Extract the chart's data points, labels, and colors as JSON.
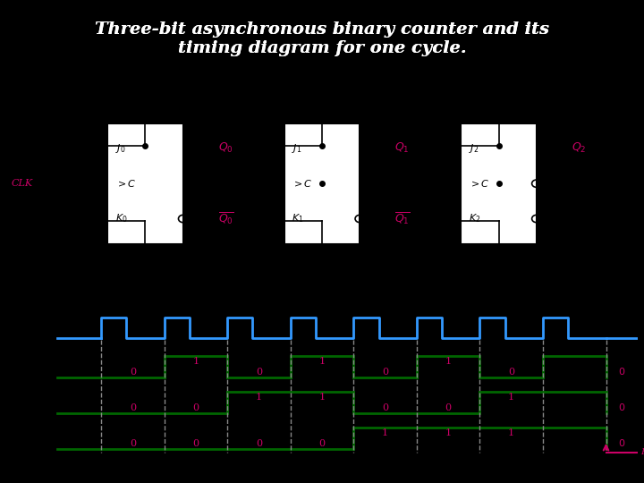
{
  "title": "Three-bit asynchronous binary counter and its\ntiming diagram for one cycle.",
  "title_color": "#ffffff",
  "bg_color": "#000000",
  "fig_bg": "#000000",
  "circuit_bg": "#d4cfc8",
  "timing_bg": "#c8cfd4",
  "clk_color": "#3399ff",
  "signal_color": "#006600",
  "label_color": "#cc0066",
  "dashed_color": "#888888",
  "text_color": "#000000",
  "magenta": "#cc0066",
  "clk_periods": 8,
  "q0_values": [
    0,
    1,
    0,
    1,
    0,
    1,
    0,
    1,
    0
  ],
  "q1_values": [
    0,
    0,
    1,
    1,
    0,
    0,
    1,
    1,
    0
  ],
  "q2_values": [
    0,
    0,
    0,
    0,
    1,
    1,
    1,
    1,
    0
  ]
}
